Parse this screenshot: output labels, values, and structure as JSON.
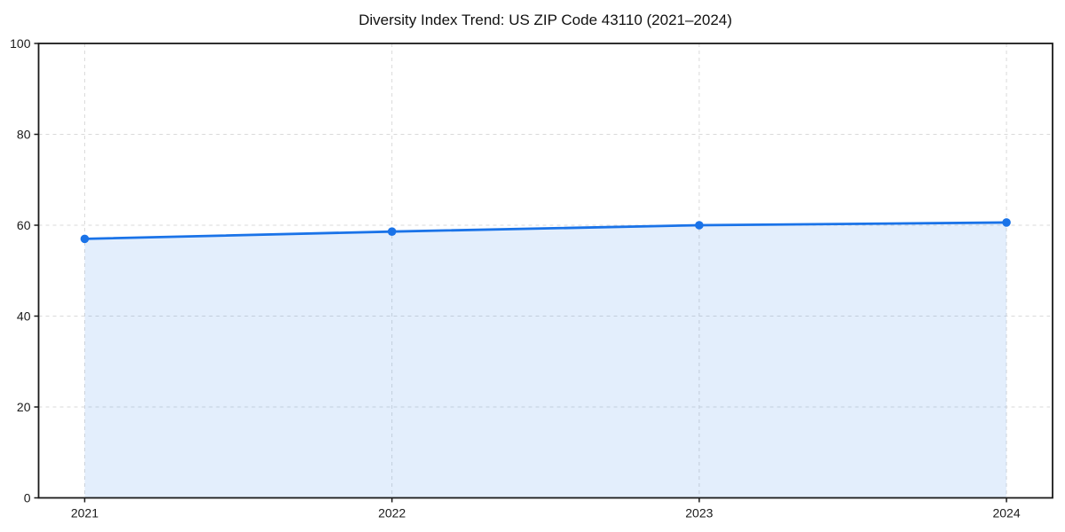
{
  "chart_data": {
    "type": "line",
    "title": "Diversity Index Trend: US ZIP Code 43110 (2021–2024)",
    "categories": [
      "2021",
      "2022",
      "2023",
      "2024"
    ],
    "series": [
      {
        "name": "Diversity Index",
        "values": [
          57.0,
          58.6,
          60.0,
          60.6
        ]
      }
    ],
    "xlabel": "",
    "ylabel": "",
    "ylim": [
      0,
      100
    ],
    "yticks": [
      0,
      20,
      40,
      60,
      80,
      100
    ],
    "grid": true,
    "grid_style": "dashed",
    "legend_position": "none",
    "colors": {
      "line": "#1a73e8",
      "marker": "#1a73e8",
      "area_fill": "#1a73e8",
      "area_fill_opacity": 0.12,
      "gridline": "#dadada",
      "frame": "#1a1a1a",
      "tick_label": "#1a1a1a",
      "title_text": "#111111",
      "background": "#ffffff"
    }
  }
}
